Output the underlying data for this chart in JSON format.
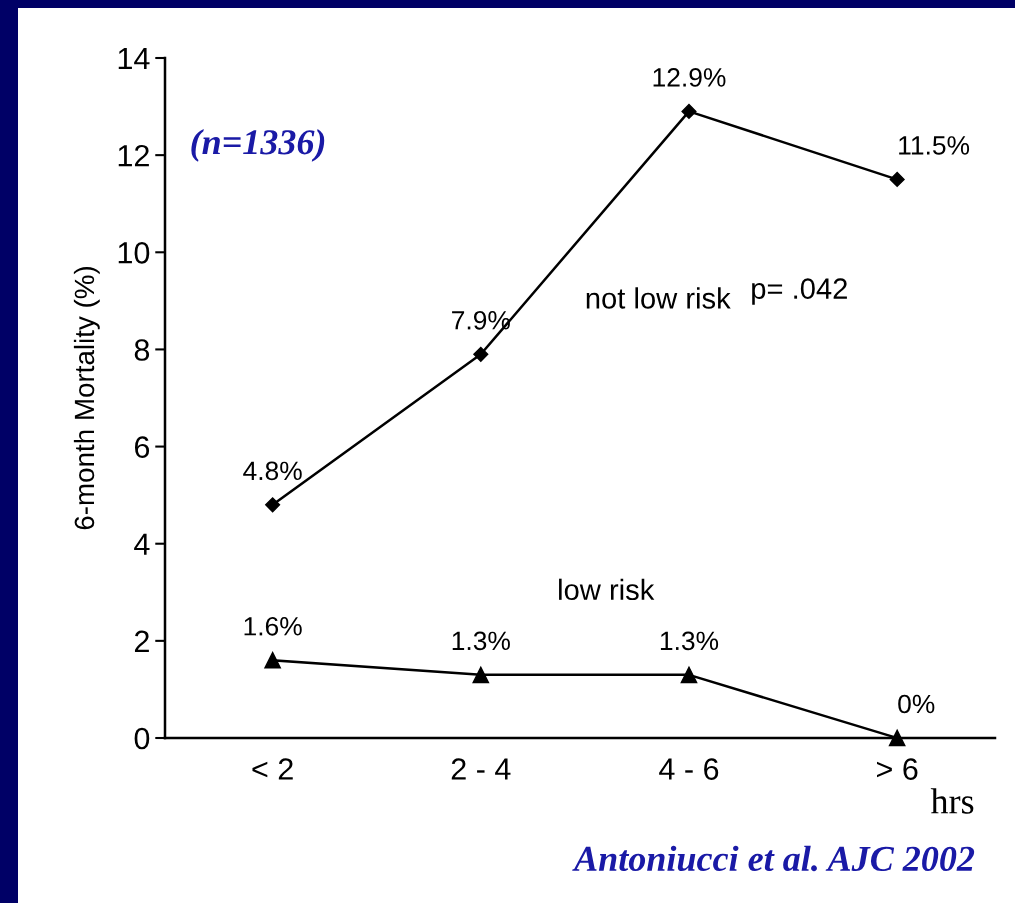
{
  "chart_data": {
    "type": "line",
    "xlabel": "hrs",
    "ylabel": "6-month Mortality (%)",
    "categories": [
      "< 2",
      "2 - 4",
      "4 - 6",
      "> 6"
    ],
    "series": [
      {
        "name": "not low risk",
        "color": "#000000",
        "marker": "diamond",
        "values": [
          4.8,
          7.9,
          12.9,
          11.5
        ],
        "value_labels": [
          "4.8%",
          "7.9%",
          "12.9%",
          "11.5%"
        ]
      },
      {
        "name": "low risk",
        "color": "#000000",
        "marker": "triangle",
        "values": [
          1.6,
          1.3,
          1.3,
          0
        ],
        "value_labels": [
          "1.6%",
          "1.3%",
          "1.3%",
          "0%"
        ]
      }
    ],
    "ylim": [
      0,
      14
    ],
    "yticks": [
      0,
      2,
      4,
      6,
      8,
      10,
      12,
      14
    ],
    "grid": false,
    "legend": false,
    "line_style": "solid",
    "annotations": [
      "(n=1336)",
      "p= .042",
      "Antoniucci et al. AJC 2002"
    ]
  }
}
